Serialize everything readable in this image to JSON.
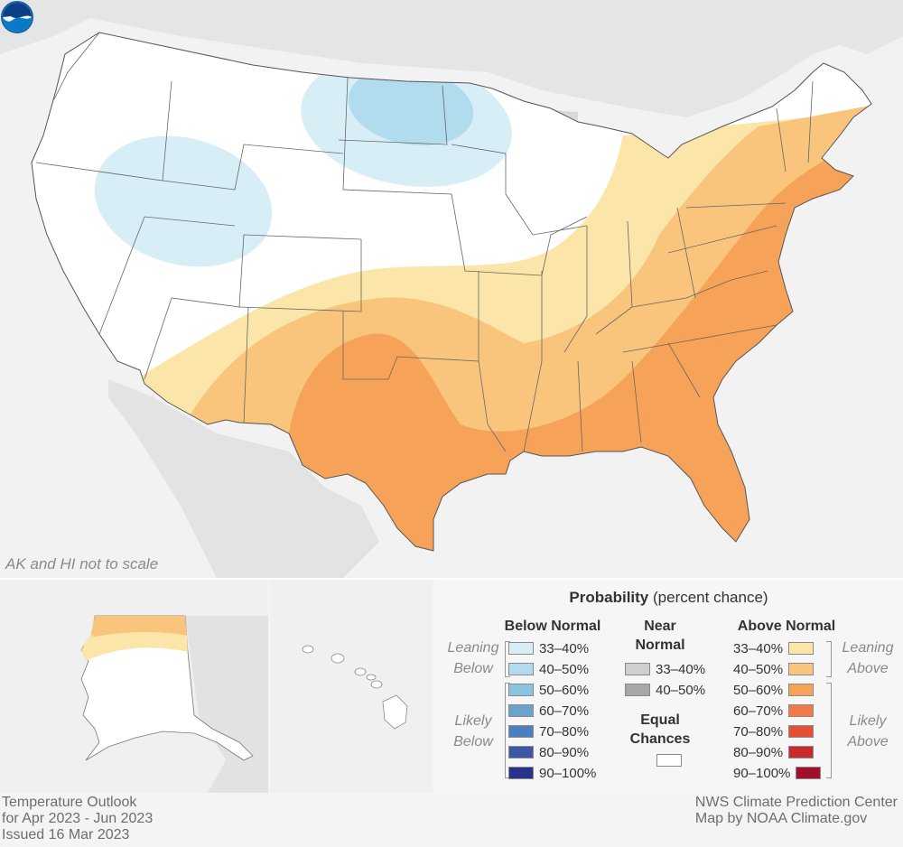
{
  "map": {
    "scale_note": "AK and HI not to scale"
  },
  "legend": {
    "title_bold": "Probability",
    "title_rest": "(percent chance)",
    "below_normal": {
      "heading": "Below Normal",
      "leaning_label": [
        "Leaning",
        "Below"
      ],
      "likely_label": [
        "Likely",
        "Below"
      ],
      "items": [
        {
          "range": "33–40%",
          "color": "#d8eef7"
        },
        {
          "range": "40–50%",
          "color": "#b0dcee"
        },
        {
          "range": "50–60%",
          "color": "#8bc4de"
        },
        {
          "range": "60–70%",
          "color": "#6ba3cf"
        },
        {
          "range": "70–80%",
          "color": "#4b7fbf"
        },
        {
          "range": "80–90%",
          "color": "#3b57a6"
        },
        {
          "range": "90–100%",
          "color": "#29338e"
        }
      ]
    },
    "near_normal": {
      "heading": [
        "Near",
        "Normal"
      ],
      "items": [
        {
          "range": "33–40%",
          "color": "#cfcfcf"
        },
        {
          "range": "40–50%",
          "color": "#a8a8a8"
        }
      ]
    },
    "equal_chances": {
      "heading": [
        "Equal",
        "Chances"
      ],
      "color": "#ffffff"
    },
    "above_normal": {
      "heading": "Above Normal",
      "leaning_label": [
        "Leaning",
        "Above"
      ],
      "likely_label": [
        "Likely",
        "Above"
      ],
      "items": [
        {
          "range": "33–40%",
          "color": "#fbe5a9"
        },
        {
          "range": "40–50%",
          "color": "#f9c57c"
        },
        {
          "range": "50–60%",
          "color": "#f7a259"
        },
        {
          "range": "60–70%",
          "color": "#f27a48"
        },
        {
          "range": "70–80%",
          "color": "#e35037"
        },
        {
          "range": "80–90%",
          "color": "#c92a2c"
        },
        {
          "range": "90–100%",
          "color": "#a0102a"
        }
      ]
    }
  },
  "footer": {
    "left": [
      "Temperature Outlook",
      "for Apr 2023 - Jun 2023",
      "Issued 16 Mar 2023"
    ],
    "right": [
      "NWS Climate Prediction Center",
      "Map by NOAA Climate.gov"
    ]
  }
}
